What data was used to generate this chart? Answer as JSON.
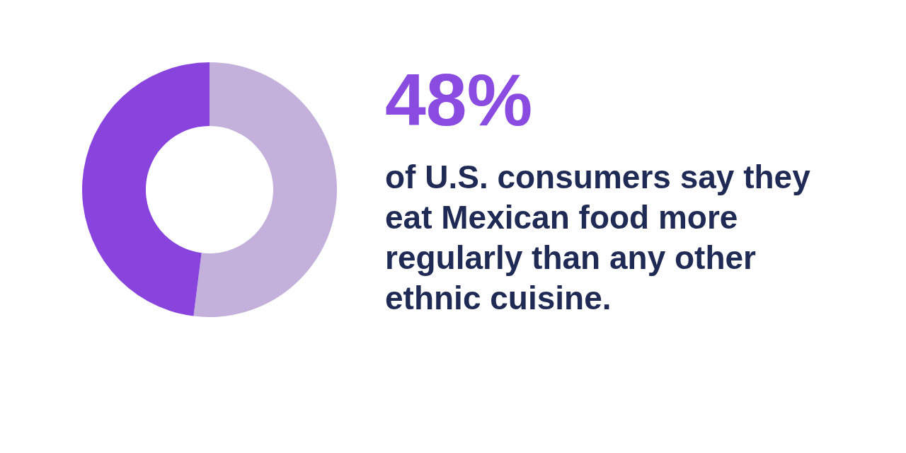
{
  "chart_data": {
    "type": "donut",
    "title": "48%",
    "subtitle": "of U.S. consumers say they eat Mexican food more regularly than any other ethnic cuisine.",
    "categories": [
      null,
      null
    ],
    "values": [
      52,
      48
    ],
    "colors": [
      "#c3b1db",
      "#8844dd"
    ]
  }
}
